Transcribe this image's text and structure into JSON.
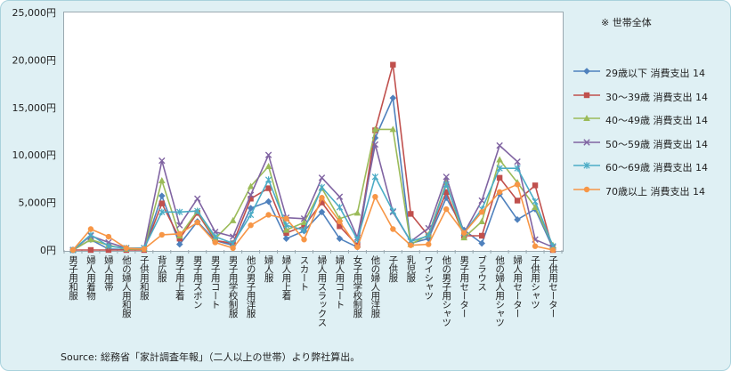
{
  "note": "※ 世帯全体",
  "source": "Source: 総務省「家計調査年報」（二人以上の世帯）より弊社算出。",
  "chart_data": {
    "type": "line",
    "ylim": [
      0,
      25000
    ],
    "yticks": [
      {
        "value": 0,
        "label": "0円"
      },
      {
        "value": 5000,
        "label": "5,000円"
      },
      {
        "value": 10000,
        "label": "10,000円"
      },
      {
        "value": 15000,
        "label": "15,000円"
      },
      {
        "value": 20000,
        "label": "20,000円"
      },
      {
        "value": 25000,
        "label": "25,000円"
      }
    ],
    "grid": false,
    "legend_position": "right",
    "categories": [
      "男子用和服",
      "婦人用着物",
      "婦人用帯",
      "他の婦人用和服",
      "子供用和服",
      "背広服",
      "男子用上着",
      "男子用ズボン",
      "男子用コート",
      "男子用学校制服",
      "他の男子用洋服",
      "婦人服",
      "婦人用上着",
      "スカート",
      "婦人用スラックス",
      "婦人用コート",
      "女子用学校制服",
      "他の婦人用洋服",
      "子供服",
      "乳児服",
      "ワイシャツ",
      "他の男子用シャツ",
      "男子用セーター",
      "ブラウス",
      "他の婦人用シャツ",
      "婦人用セーター",
      "子供用シャツ",
      "子供用セーター"
    ],
    "series": [
      {
        "name": "29歳以下 消費支出 14",
        "color": "#4f81bd",
        "marker": "diamond",
        "values": [
          0,
          1100,
          100,
          50,
          100,
          5700,
          600,
          3000,
          1000,
          500,
          4400,
          5100,
          1200,
          2000,
          4000,
          1200,
          300,
          11800,
          16000,
          700,
          1200,
          5500,
          2100,
          700,
          5900,
          3200,
          4300,
          200
        ]
      },
      {
        "name": "30～39歳 消費支出 14",
        "color": "#c0504d",
        "marker": "square",
        "values": [
          0,
          0,
          0,
          0,
          0,
          4900,
          1200,
          3900,
          1000,
          700,
          5400,
          6500,
          1800,
          2500,
          5000,
          2500,
          500,
          12600,
          19500,
          3800,
          1500,
          6100,
          1500,
          1500,
          7600,
          5200,
          6800,
          0
        ]
      },
      {
        "name": "40～49歳 消費支出 14",
        "color": "#9bbb59",
        "marker": "triangle",
        "values": [
          0,
          1100,
          500,
          100,
          100,
          7300,
          1500,
          4100,
          1200,
          3100,
          6700,
          8800,
          2100,
          2900,
          6500,
          3300,
          3900,
          12700,
          12700,
          600,
          1600,
          7100,
          1300,
          3000,
          9500,
          7100,
          4500,
          500
        ]
      },
      {
        "name": "50～59歳 消費支出 14",
        "color": "#8064a2",
        "marker": "x",
        "values": [
          0,
          1500,
          800,
          200,
          200,
          9400,
          2600,
          5400,
          1900,
          1400,
          5800,
          10000,
          3400,
          3300,
          7600,
          5600,
          1300,
          11100,
          4000,
          900,
          2300,
          7700,
          1800,
          5200,
          11000,
          9300,
          1100,
          300
        ]
      },
      {
        "name": "60～69歳 消費支出 14",
        "color": "#4bacc6",
        "marker": "asterisk",
        "values": [
          0,
          1600,
          400,
          200,
          200,
          4000,
          4000,
          4100,
          1400,
          700,
          3700,
          7400,
          2600,
          2100,
          6600,
          4500,
          1100,
          7700,
          4100,
          900,
          1500,
          6900,
          1800,
          4300,
          8600,
          8600,
          5100,
          400
        ]
      },
      {
        "name": "70歳以上 消費支出 14",
        "color": "#f79646",
        "marker": "circle",
        "values": [
          0,
          2200,
          1400,
          200,
          100,
          1600,
          1700,
          2900,
          800,
          200,
          2600,
          3700,
          3300,
          1100,
          5500,
          3000,
          300,
          5600,
          2200,
          500,
          600,
          4300,
          1800,
          4000,
          6100,
          6900,
          400,
          0
        ]
      }
    ]
  }
}
